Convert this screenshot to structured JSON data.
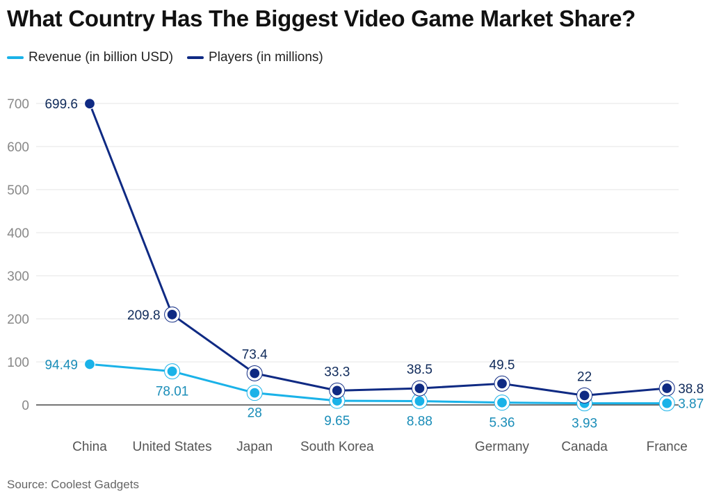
{
  "colors": {
    "revenue": "#1ab2e8",
    "revenue_label": "#1a8db8",
    "players": "#0f2a83",
    "players_label": "#0f2a5a",
    "grid": "#e6e6e6",
    "tick": "#888888",
    "category": "#555555"
  },
  "chart_data": {
    "type": "line",
    "title": "What Country Has The Biggest Video Game Market Share?",
    "categories": [
      "China",
      "United States",
      "Japan",
      "South Korea",
      "",
      "Germany",
      "Canada",
      "France"
    ],
    "series": [
      {
        "name": "Revenue (in billion USD)",
        "values": [
          94.49,
          78.01,
          28,
          9.65,
          8.88,
          5.36,
          3.93,
          3.87
        ],
        "labels": [
          "94.49",
          "78.01",
          "28",
          "9.65",
          "8.88",
          "5.36",
          "3.93",
          "3.87"
        ]
      },
      {
        "name": "Players (in millions)",
        "values": [
          699.6,
          209.8,
          73.4,
          33.3,
          38.5,
          49.5,
          22,
          38.8
        ],
        "labels": [
          "699.6",
          "209.8",
          "73.4",
          "33.3",
          "38.5",
          "49.5",
          "22",
          "38.8"
        ]
      }
    ],
    "yticks": [
      0,
      100,
      200,
      300,
      400,
      500,
      600,
      700
    ],
    "ylim": [
      0,
      700
    ],
    "grid": true,
    "legend_position": "top-left",
    "xlabel": "",
    "ylabel": "",
    "source": "Source: Coolest Gadgets"
  }
}
